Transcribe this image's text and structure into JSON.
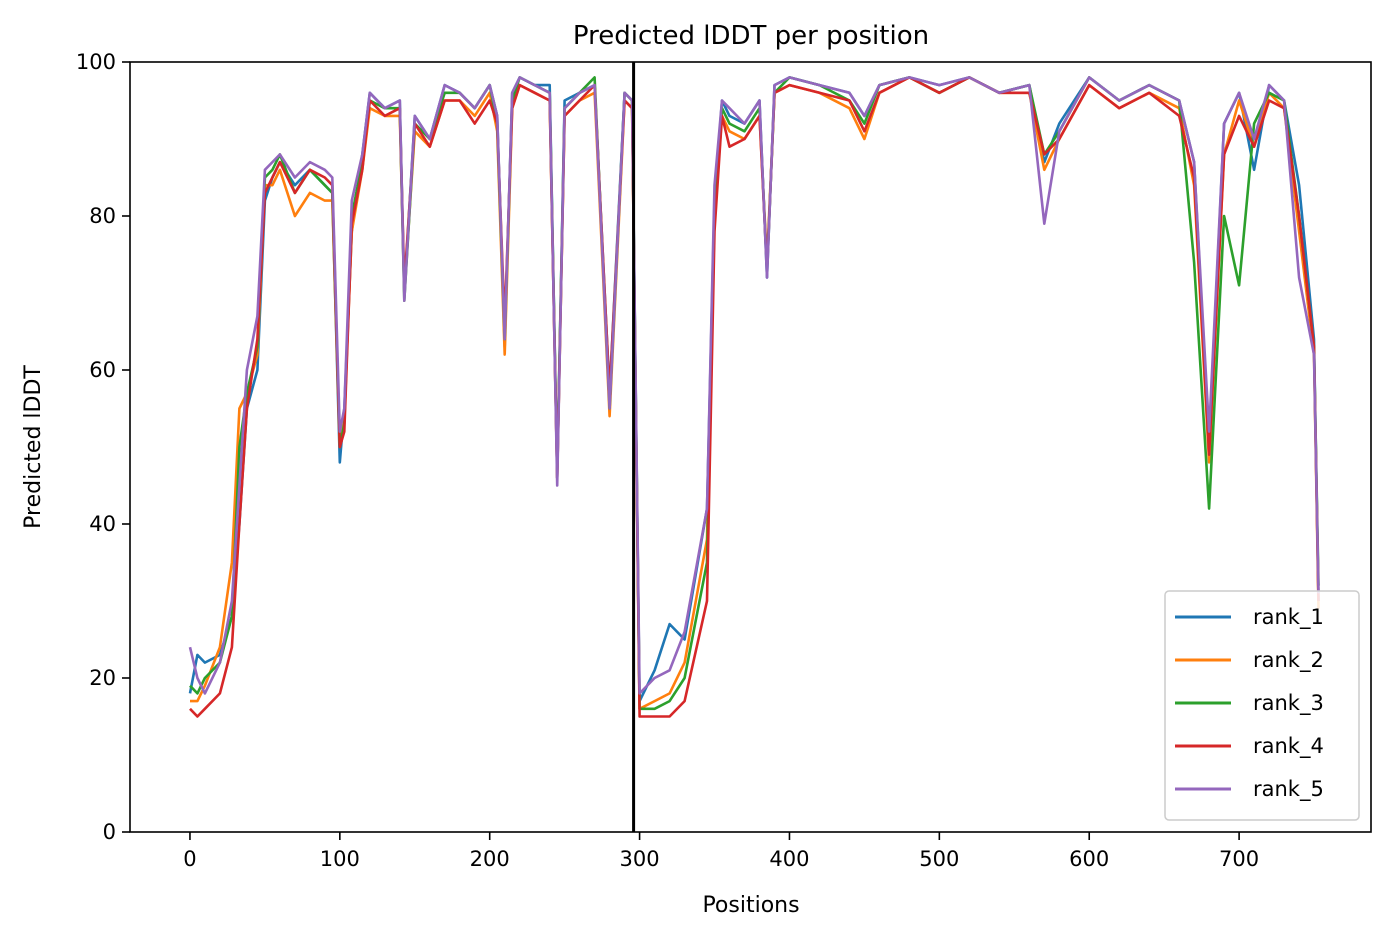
{
  "chart_data": {
    "type": "line",
    "title": "Predicted lDDT per position",
    "xlabel": "Positions",
    "ylabel": "Predicted lDDT",
    "xlim": [
      -40,
      788
    ],
    "ylim": [
      0,
      100
    ],
    "xticks": [
      0,
      100,
      200,
      300,
      400,
      500,
      600,
      700
    ],
    "yticks": [
      0,
      20,
      40,
      60,
      80,
      100
    ],
    "grid": false,
    "legend_position": "lower-right",
    "boundary_line_x": 296,
    "series": [
      {
        "name": "rank_1",
        "color": "#1f77b4",
        "x": [
          0,
          5,
          10,
          20,
          28,
          33,
          38,
          45,
          50,
          55,
          60,
          70,
          80,
          90,
          95,
          100,
          103,
          108,
          115,
          120,
          130,
          140,
          143,
          150,
          160,
          170,
          180,
          190,
          200,
          205,
          210,
          215,
          220,
          230,
          240,
          245,
          250,
          260,
          270,
          280,
          290,
          295,
          300,
          310,
          320,
          330,
          345,
          350,
          355,
          360,
          370,
          380,
          385,
          390,
          400,
          420,
          440,
          450,
          460,
          480,
          500,
          520,
          540,
          560,
          570,
          580,
          600,
          620,
          640,
          660,
          670,
          680,
          690,
          700,
          710,
          720,
          730,
          740,
          750,
          753
        ],
        "y": [
          18,
          23,
          22,
          23,
          28,
          40,
          55,
          60,
          82,
          85,
          87,
          84,
          86,
          84,
          83,
          48,
          55,
          78,
          88,
          96,
          94,
          95,
          70,
          93,
          90,
          97,
          96,
          94,
          97,
          93,
          63,
          96,
          98,
          97,
          97,
          46,
          95,
          96,
          97,
          57,
          96,
          95,
          17,
          21,
          27,
          25,
          42,
          82,
          95,
          93,
          92,
          95,
          72,
          97,
          98,
          97,
          96,
          93,
          97,
          98,
          97,
          98,
          96,
          97,
          87,
          92,
          98,
          95,
          97,
          95,
          87,
          50,
          92,
          96,
          86,
          97,
          95,
          84,
          64,
          30
        ]
      },
      {
        "name": "rank_2",
        "color": "#ff7f0e",
        "x": [
          0,
          5,
          10,
          20,
          28,
          33,
          38,
          45,
          50,
          55,
          60,
          70,
          80,
          90,
          95,
          100,
          103,
          108,
          115,
          120,
          130,
          140,
          143,
          150,
          160,
          170,
          180,
          190,
          200,
          205,
          210,
          215,
          220,
          230,
          240,
          245,
          250,
          260,
          270,
          280,
          290,
          295,
          300,
          310,
          320,
          330,
          345,
          350,
          355,
          360,
          370,
          380,
          385,
          390,
          400,
          420,
          440,
          450,
          460,
          480,
          500,
          520,
          540,
          560,
          570,
          580,
          600,
          620,
          640,
          660,
          670,
          680,
          690,
          700,
          710,
          720,
          730,
          740,
          750,
          753
        ],
        "y": [
          17,
          17,
          19,
          24,
          35,
          55,
          57,
          62,
          84,
          84,
          86,
          80,
          83,
          82,
          82,
          50,
          54,
          78,
          86,
          94,
          93,
          93,
          70,
          91,
          89,
          95,
          95,
          93,
          96,
          91,
          62,
          94,
          97,
          96,
          95,
          46,
          93,
          95,
          96,
          54,
          95,
          94,
          16,
          17,
          18,
          22,
          38,
          80,
          93,
          91,
          90,
          93,
          74,
          96,
          97,
          96,
          94,
          90,
          96,
          98,
          96,
          98,
          96,
          96,
          86,
          90,
          97,
          94,
          96,
          94,
          84,
          48,
          88,
          95,
          89,
          96,
          94,
          78,
          62,
          29
        ]
      },
      {
        "name": "rank_3",
        "color": "#2ca02c",
        "x": [
          0,
          5,
          10,
          20,
          28,
          33,
          38,
          45,
          50,
          55,
          60,
          70,
          80,
          90,
          95,
          100,
          103,
          108,
          115,
          120,
          130,
          140,
          143,
          150,
          160,
          170,
          180,
          190,
          200,
          205,
          210,
          215,
          220,
          230,
          240,
          245,
          250,
          260,
          270,
          280,
          290,
          295,
          300,
          310,
          320,
          330,
          345,
          350,
          355,
          360,
          370,
          380,
          385,
          390,
          400,
          420,
          440,
          450,
          460,
          480,
          500,
          520,
          540,
          560,
          570,
          580,
          600,
          620,
          640,
          660,
          670,
          680,
          690,
          700,
          710,
          720,
          730,
          740,
          750,
          753
        ],
        "y": [
          19,
          18,
          20,
          22,
          28,
          50,
          57,
          63,
          85,
          86,
          88,
          83,
          86,
          84,
          83,
          50,
          53,
          80,
          87,
          95,
          94,
          94,
          69,
          92,
          90,
          96,
          96,
          94,
          97,
          92,
          64,
          95,
          98,
          97,
          96,
          47,
          94,
          96,
          98,
          55,
          96,
          95,
          16,
          16,
          17,
          20,
          35,
          80,
          94,
          92,
          91,
          94,
          73,
          96,
          98,
          97,
          95,
          92,
          97,
          98,
          96,
          98,
          96,
          97,
          88,
          91,
          98,
          95,
          97,
          95,
          74,
          42,
          80,
          71,
          92,
          96,
          95,
          80,
          63,
          32
        ]
      },
      {
        "name": "rank_4",
        "color": "#d62728",
        "x": [
          0,
          5,
          10,
          20,
          28,
          33,
          38,
          45,
          50,
          55,
          60,
          70,
          80,
          90,
          95,
          100,
          103,
          108,
          115,
          120,
          130,
          140,
          143,
          150,
          160,
          170,
          180,
          190,
          200,
          205,
          210,
          215,
          220,
          230,
          240,
          245,
          250,
          260,
          270,
          280,
          290,
          295,
          300,
          310,
          320,
          330,
          345,
          350,
          355,
          360,
          370,
          380,
          385,
          390,
          400,
          420,
          440,
          450,
          460,
          480,
          500,
          520,
          540,
          560,
          570,
          580,
          600,
          620,
          640,
          660,
          670,
          680,
          690,
          700,
          710,
          720,
          730,
          740,
          750,
          753
        ],
        "y": [
          16,
          15,
          16,
          18,
          24,
          40,
          55,
          64,
          83,
          85,
          87,
          83,
          86,
          85,
          84,
          50,
          52,
          79,
          86,
          95,
          93,
          94,
          71,
          92,
          89,
          95,
          95,
          92,
          95,
          92,
          66,
          94,
          97,
          96,
          95,
          46,
          93,
          95,
          97,
          57,
          95,
          94,
          15,
          15,
          15,
          17,
          30,
          78,
          93,
          89,
          90,
          93,
          73,
          96,
          97,
          96,
          95,
          91,
          96,
          98,
          96,
          98,
          96,
          96,
          88,
          90,
          97,
          94,
          96,
          93,
          85,
          49,
          88,
          93,
          89,
          95,
          94,
          80,
          63,
          30
        ]
      },
      {
        "name": "rank_5",
        "color": "#9467bd",
        "x": [
          0,
          5,
          10,
          20,
          28,
          33,
          38,
          45,
          50,
          55,
          60,
          70,
          80,
          90,
          95,
          100,
          103,
          108,
          115,
          120,
          130,
          140,
          143,
          150,
          160,
          170,
          180,
          190,
          200,
          205,
          210,
          215,
          220,
          230,
          240,
          245,
          250,
          260,
          270,
          280,
          290,
          295,
          300,
          310,
          320,
          330,
          345,
          350,
          355,
          360,
          370,
          380,
          385,
          390,
          400,
          420,
          440,
          450,
          460,
          480,
          500,
          520,
          540,
          560,
          570,
          580,
          600,
          620,
          640,
          660,
          670,
          680,
          690,
          700,
          710,
          720,
          730,
          740,
          750,
          753
        ],
        "y": [
          24,
          20,
          18,
          22,
          30,
          45,
          60,
          67,
          86,
          87,
          88,
          85,
          87,
          86,
          85,
          52,
          55,
          82,
          88,
          96,
          94,
          95,
          69,
          93,
          90,
          97,
          96,
          94,
          97,
          93,
          64,
          96,
          98,
          97,
          96,
          45,
          94,
          96,
          97,
          55,
          96,
          95,
          18,
          20,
          21,
          26,
          42,
          84,
          95,
          94,
          92,
          95,
          72,
          97,
          98,
          97,
          96,
          93,
          97,
          98,
          97,
          98,
          96,
          97,
          79,
          91,
          98,
          95,
          97,
          95,
          87,
          52,
          92,
          96,
          90,
          97,
          95,
          72,
          62,
          31
        ]
      }
    ]
  }
}
